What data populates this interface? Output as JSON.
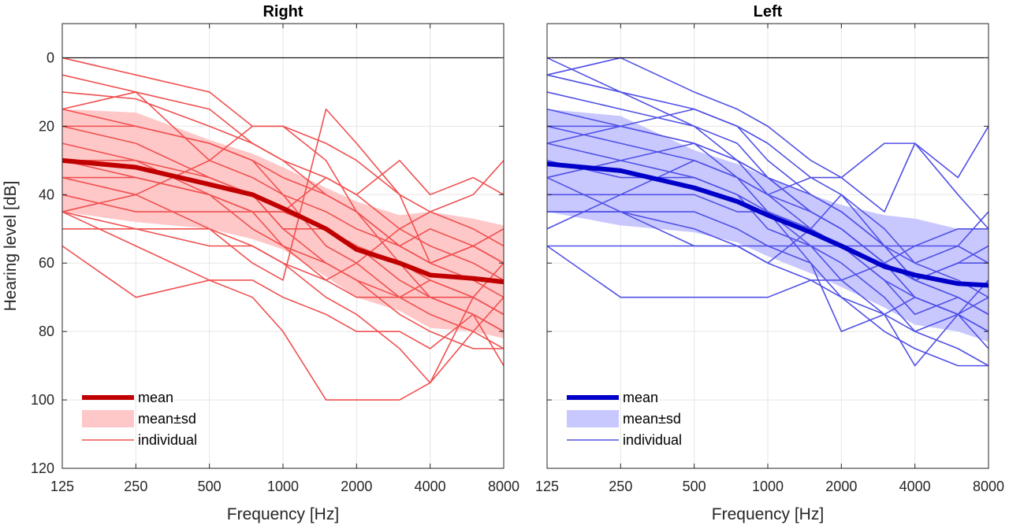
{
  "chart_data": [
    {
      "type": "line",
      "title": "Right",
      "xlabel": "Frequency [Hz]",
      "ylabel": "Hearing level [dB]",
      "x_scale": "log2",
      "y_reversed": true,
      "xlim": [
        125,
        8000
      ],
      "ylim": [
        120,
        -10
      ],
      "x_ticks": [
        125,
        250,
        500,
        1000,
        2000,
        4000,
        8000
      ],
      "x_tick_labels": [
        "125",
        "250",
        "500",
        "1000",
        "2000",
        "4000",
        "8000"
      ],
      "y_ticks": [
        0,
        20,
        40,
        60,
        80,
        100,
        120
      ],
      "y_tick_labels": [
        "0",
        "20",
        "40",
        "60",
        "80",
        "100",
        "120"
      ],
      "grid": true,
      "reference_line": 0,
      "colors": {
        "mean": "#c00000",
        "band": "#ffc8c8",
        "individual": "#f05050"
      },
      "legend": {
        "placement": "bottom-left",
        "entries": [
          "mean",
          "mean±sd",
          "individual"
        ]
      },
      "x": [
        125,
        250,
        500,
        750,
        1000,
        1500,
        2000,
        3000,
        4000,
        6000,
        8000
      ],
      "mean": [
        30,
        32,
        37,
        40,
        44,
        50,
        56,
        60,
        63.5,
        64.5,
        65.5
      ],
      "sd_lower": [
        15,
        16,
        24,
        28,
        32,
        38,
        42,
        46,
        45,
        47,
        49
      ],
      "sd_upper": [
        45,
        48,
        50,
        53,
        56,
        64,
        70,
        74,
        79,
        80,
        82
      ],
      "individual": [
        [
          0,
          5,
          10,
          20,
          20,
          25,
          30,
          40,
          45,
          50,
          55
        ],
        [
          5,
          10,
          15,
          25,
          30,
          40,
          45,
          55,
          60,
          65,
          70
        ],
        [
          10,
          12,
          20,
          25,
          30,
          35,
          40,
          50,
          55,
          60,
          65
        ],
        [
          15,
          10,
          30,
          35,
          40,
          45,
          50,
          55,
          60,
          55,
          60
        ],
        [
          20,
          20,
          25,
          30,
          40,
          55,
          60,
          50,
          45,
          40,
          30
        ],
        [
          25,
          30,
          35,
          40,
          50,
          50,
          55,
          60,
          65,
          70,
          75
        ],
        [
          30,
          35,
          40,
          45,
          45,
          35,
          40,
          30,
          40,
          35,
          40
        ],
        [
          35,
          35,
          40,
          50,
          55,
          60,
          65,
          70,
          70,
          75,
          80
        ],
        [
          40,
          45,
          45,
          45,
          55,
          65,
          60,
          70,
          75,
          80,
          85
        ],
        [
          45,
          50,
          55,
          55,
          60,
          65,
          70,
          70,
          65,
          70,
          75
        ],
        [
          45,
          40,
          30,
          20,
          20,
          30,
          45,
          60,
          70,
          75,
          90
        ],
        [
          50,
          50,
          50,
          55,
          60,
          70,
          75,
          85,
          95,
          80,
          70
        ],
        [
          20,
          25,
          35,
          40,
          50,
          60,
          65,
          75,
          80,
          85,
          85
        ],
        [
          55,
          70,
          65,
          70,
          80,
          100,
          100,
          100,
          95,
          70,
          60
        ],
        [
          45,
          55,
          65,
          65,
          70,
          75,
          80,
          80,
          85,
          75,
          80
        ],
        [
          35,
          40,
          50,
          60,
          65,
          15,
          25,
          40,
          60,
          55,
          50
        ],
        [
          30,
          30,
          40,
          45,
          45,
          50,
          55,
          65,
          70,
          70,
          75
        ],
        [
          15,
          20,
          25,
          30,
          35,
          40,
          45,
          55,
          50,
          55,
          60
        ]
      ]
    },
    {
      "type": "line",
      "title": "Left",
      "xlabel": "Frequency [Hz]",
      "ylabel": "",
      "x_scale": "log2",
      "y_reversed": true,
      "xlim": [
        125,
        8000
      ],
      "ylim": [
        120,
        -10
      ],
      "x_ticks": [
        125,
        250,
        500,
        1000,
        2000,
        4000,
        8000
      ],
      "x_tick_labels": [
        "125",
        "250",
        "500",
        "1000",
        "2000",
        "4000",
        "8000"
      ],
      "grid": true,
      "reference_line": 0,
      "colors": {
        "mean": "#0000c8",
        "band": "#c8c8ff",
        "individual": "#5050e6"
      },
      "legend": {
        "placement": "bottom-left",
        "entries": [
          "mean",
          "mean±sd",
          "individual"
        ]
      },
      "x": [
        125,
        250,
        500,
        750,
        1000,
        1500,
        2000,
        3000,
        4000,
        6000,
        8000
      ],
      "mean": [
        31,
        33,
        38,
        42,
        46,
        51,
        55,
        61,
        63.5,
        66,
        66.5
      ],
      "sd_lower": [
        15,
        17,
        27,
        31,
        35,
        40,
        43,
        46,
        47,
        50,
        50
      ],
      "sd_upper": [
        45,
        49,
        51,
        54,
        58,
        63,
        67,
        73,
        78,
        80,
        83
      ],
      "individual": [
        [
          0,
          10,
          15,
          20,
          30,
          40,
          45,
          55,
          65,
          70,
          75
        ],
        [
          5,
          0,
          10,
          15,
          20,
          30,
          35,
          45,
          25,
          35,
          20
        ],
        [
          5,
          10,
          20,
          25,
          35,
          40,
          45,
          55,
          60,
          65,
          70
        ],
        [
          10,
          15,
          20,
          30,
          35,
          45,
          50,
          60,
          65,
          70,
          75
        ],
        [
          15,
          20,
          25,
          35,
          40,
          50,
          55,
          65,
          70,
          75,
          80
        ],
        [
          20,
          25,
          30,
          35,
          40,
          45,
          50,
          60,
          70,
          75,
          85
        ],
        [
          25,
          30,
          35,
          40,
          45,
          55,
          60,
          70,
          80,
          85,
          90
        ],
        [
          30,
          35,
          35,
          40,
          50,
          55,
          65,
          75,
          90,
          75,
          65
        ],
        [
          35,
          45,
          45,
          50,
          55,
          60,
          70,
          80,
          85,
          90,
          90
        ],
        [
          40,
          40,
          40,
          45,
          45,
          50,
          55,
          65,
          75,
          70,
          75
        ],
        [
          45,
          45,
          50,
          55,
          60,
          65,
          70,
          75,
          80,
          75,
          80
        ],
        [
          50,
          40,
          30,
          35,
          45,
          60,
          80,
          75,
          70,
          75,
          70
        ],
        [
          55,
          70,
          70,
          70,
          70,
          65,
          65,
          60,
          55,
          55,
          60
        ],
        [
          45,
          45,
          55,
          55,
          60,
          50,
          40,
          50,
          60,
          55,
          45
        ],
        [
          35,
          30,
          25,
          30,
          40,
          35,
          35,
          25,
          25,
          40,
          50
        ],
        [
          25,
          20,
          15,
          20,
          25,
          35,
          40,
          55,
          65,
          60,
          55
        ],
        [
          55,
          55,
          55,
          55,
          55,
          55,
          55,
          55,
          55,
          50,
          50
        ],
        [
          20,
          20,
          25,
          30,
          35,
          45,
          50,
          60,
          65,
          60,
          60
        ]
      ]
    }
  ]
}
